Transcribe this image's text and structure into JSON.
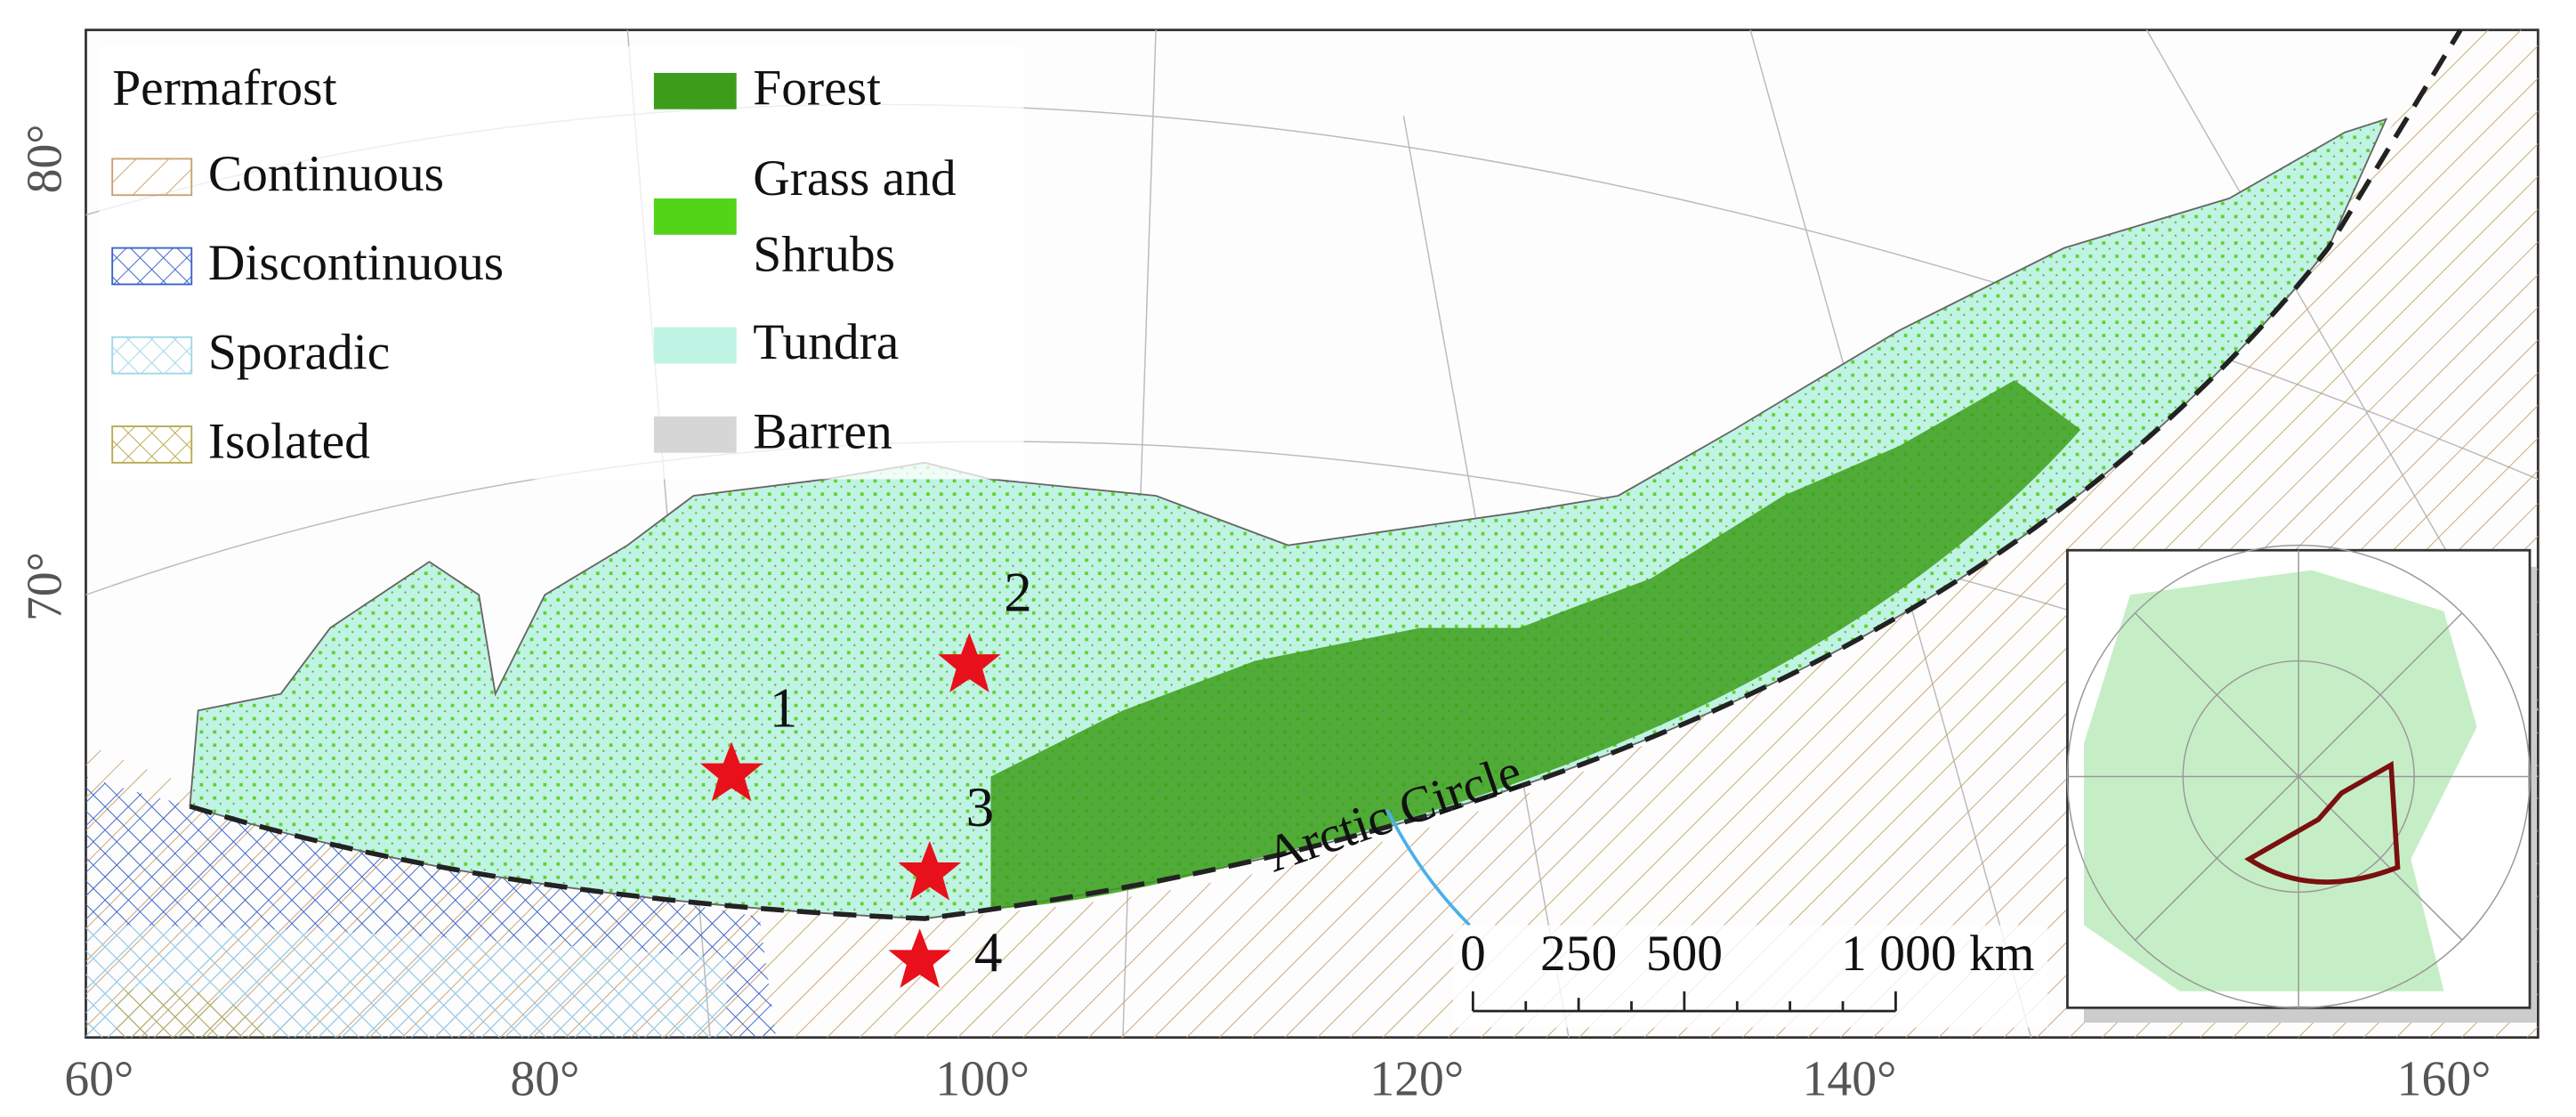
{
  "legend": {
    "permafrost_title": "Permafrost",
    "permafrost": [
      "Continuous",
      "Discontinuous",
      "Sporadic",
      "Isolated"
    ],
    "landcover": [
      "Forest",
      "Grass and Shrubs",
      "Tundra",
      "Barren"
    ]
  },
  "sites": [
    "1",
    "2",
    "3",
    "4"
  ],
  "annotation": "Arctic Circle",
  "scale_bar": [
    "0",
    "250",
    "500",
    "1 000 km"
  ],
  "lon_labels": [
    "60°",
    "80°",
    "100°",
    "120°",
    "140°",
    "160°"
  ],
  "lat_labels": [
    "80°",
    "70°"
  ]
}
